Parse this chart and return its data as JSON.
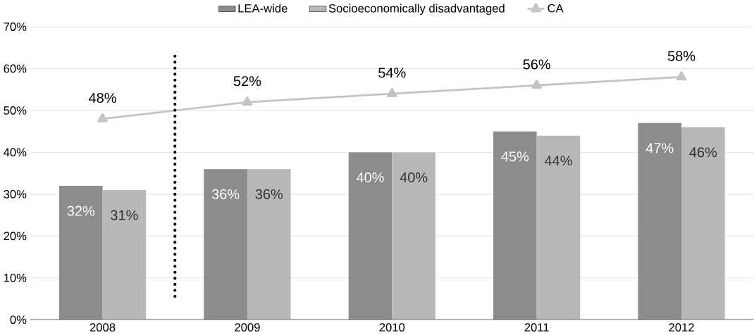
{
  "chart_data": {
    "type": "bar",
    "categories": [
      "2008",
      "2009",
      "2010",
      "2011",
      "2012"
    ],
    "series": [
      {
        "name": "LEA-wide",
        "color": "#8c8c8c",
        "values": [
          32,
          36,
          40,
          45,
          47
        ],
        "value_labels": [
          "32%",
          "36%",
          "40%",
          "45%",
          "47%"
        ]
      },
      {
        "name": "Socioeconomically disadvantaged",
        "color": "#b8b8b8",
        "values": [
          31,
          36,
          40,
          44,
          46
        ],
        "value_labels": [
          "31%",
          "36%",
          "40%",
          "44%",
          "46%"
        ]
      },
      {
        "name": "CA",
        "type": "line",
        "color": "#c4c4c4",
        "marker": "triangle",
        "values": [
          48,
          52,
          54,
          56,
          58
        ],
        "value_labels": [
          "48%",
          "52%",
          "54%",
          "56%",
          "58%"
        ]
      }
    ],
    "ylim": [
      0,
      70
    ],
    "yticks": [
      {
        "value": 0,
        "label": "0%"
      },
      {
        "value": 10,
        "label": "10%"
      },
      {
        "value": 20,
        "label": "20%"
      },
      {
        "value": 30,
        "label": "30%"
      },
      {
        "value": 40,
        "label": "40%"
      },
      {
        "value": 50,
        "label": "50%"
      },
      {
        "value": 60,
        "label": "60%"
      },
      {
        "value": 70,
        "label": "70%"
      }
    ],
    "grid": "y",
    "legend": "top"
  }
}
